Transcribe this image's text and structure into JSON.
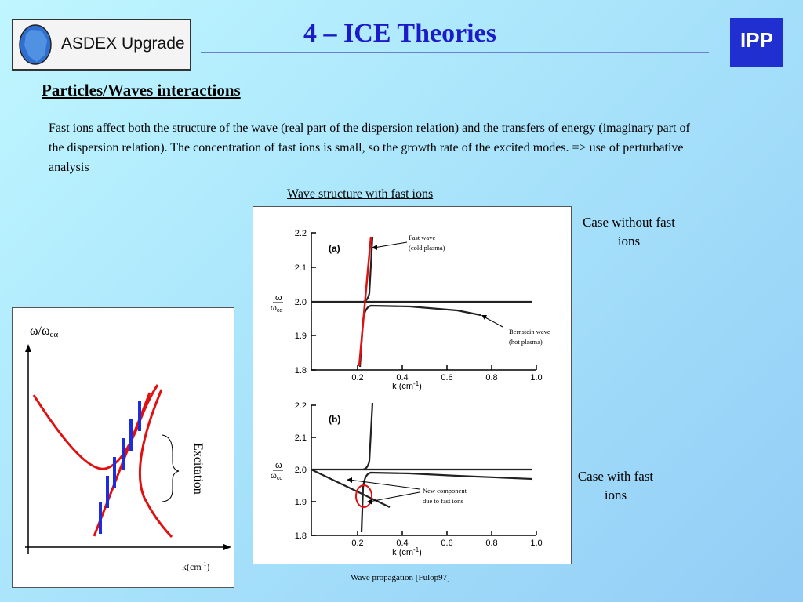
{
  "header": {
    "logo_text": "ASDEX Upgrade",
    "title": "4 – ICE Theories",
    "ipp_logo_text": "IPP",
    "title_color": "#1b1bc8"
  },
  "section": {
    "subtitle": "Particles/Waves interactions",
    "paragraph": "Fast ions affect both the structure of the wave (real part of the dispersion relation) and the transfers of energy (imaginary part of the dispersion relation). The concentration of fast ions is small, so the growth rate of the excited modes. => use of perturbative analysis"
  },
  "figure": {
    "title": "Wave structure with fast ions",
    "caption": "Wave propagation [Fulop97]",
    "case_without": "Case without fast ions",
    "case_with": "Case with fast ions"
  },
  "sketch": {
    "y_label": "ω/ω",
    "y_label_sub": "cα",
    "x_label": "k(cm",
    "x_label_sup": "-1",
    "x_label_end": ")",
    "bracket_label": "Excitation"
  },
  "plot_a": {
    "panel_label": "(a)",
    "y_axis_top": "ω",
    "y_axis_bottom": "ω",
    "y_axis_bottom_sub": "cα",
    "yticks": [
      "2.2",
      "2.1",
      "2.0",
      "1.9",
      "1.8"
    ],
    "xticks": [
      "0.2",
      "0.4",
      "0.6",
      "0.8",
      "1.0"
    ],
    "x_label": "k (cm",
    "x_label_sup": "-1",
    "x_label_end": ")",
    "annotation_fast_line1": "Fast wave",
    "annotation_fast_line2": "(cold plasma)",
    "annotation_bernstein_line1": "Bernstein wave",
    "annotation_bernstein_line2": "(hot plasma)"
  },
  "plot_b": {
    "panel_label": "(b)",
    "y_axis_top": "ω",
    "y_axis_bottom": "ω",
    "y_axis_bottom_sub": "cα",
    "yticks": [
      "2.2",
      "2.1",
      "2.0",
      "1.9",
      "1.8"
    ],
    "xticks": [
      "0.2",
      "0.4",
      "0.6",
      "0.8",
      "1.0"
    ],
    "x_label": "k (cm",
    "x_label_sup": "-1",
    "x_label_end": ")",
    "annotation_line1": "New component",
    "annotation_line2": "due to fast ions"
  },
  "colors": {
    "curve_red": "#e01010",
    "bar_blue": "#1a2ee0"
  }
}
